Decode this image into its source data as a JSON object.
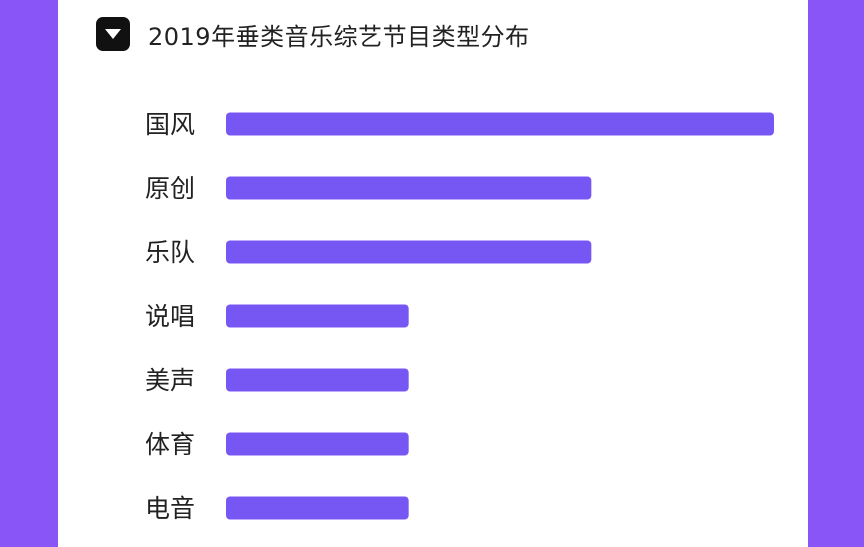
{
  "page": {
    "background_color": "#8a55f7",
    "card_color": "#ffffff",
    "toggle_icon": "triangle-down-icon"
  },
  "chart_data": {
    "type": "bar",
    "orientation": "horizontal",
    "title": "2019年垂类音乐综艺节目类型分布",
    "categories": [
      "国风",
      "原创",
      "乐队",
      "说唱",
      "美声",
      "体育",
      "电音"
    ],
    "values": [
      3,
      2,
      2,
      1,
      1,
      1,
      1
    ],
    "bar_color": "#7757f4",
    "xlim": [
      0,
      3
    ],
    "grid": false,
    "legend": "none"
  }
}
